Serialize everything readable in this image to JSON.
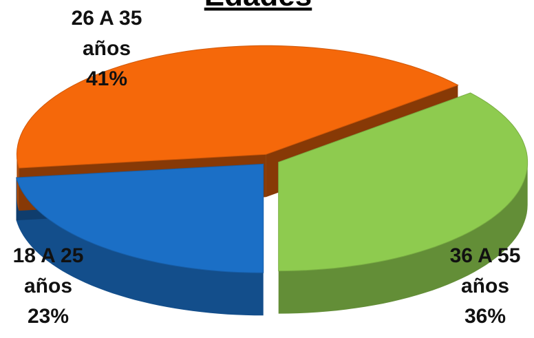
{
  "chart_data": {
    "type": "pie",
    "title": "Edades",
    "categories": [
      "18 A 25 años",
      "26 A 35 años",
      "36 A 55 años"
    ],
    "values": [
      23,
      41,
      36
    ],
    "value_labels": [
      "23%",
      "41%",
      "36%"
    ],
    "colors": [
      "#1b6fc6",
      "#f5680a",
      "#8ecb4f"
    ]
  }
}
